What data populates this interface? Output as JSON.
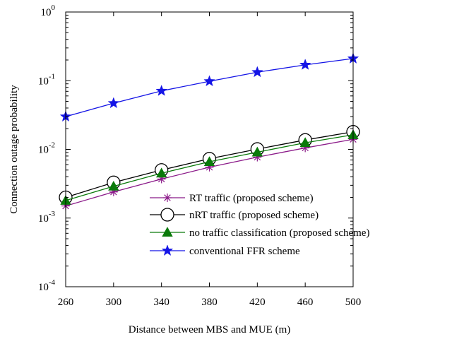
{
  "chart_data": {
    "type": "line",
    "xlabel": "Distance between MBS and MUE (m)",
    "ylabel": "Connection outage probability",
    "xlim": [
      260,
      500
    ],
    "ylim": [
      0.0001,
      1
    ],
    "yscale": "log",
    "x_ticks": [
      "260",
      "300",
      "340",
      "380",
      "420",
      "460",
      "500"
    ],
    "y_ticks": [
      {
        "value": 0.0001,
        "base": "10",
        "exp": "-4"
      },
      {
        "value": 0.001,
        "base": "10",
        "exp": "-3"
      },
      {
        "value": 0.01,
        "base": "10",
        "exp": "-2"
      },
      {
        "value": 0.1,
        "base": "10",
        "exp": "-1"
      },
      {
        "value": 1,
        "base": "10",
        "exp": "0"
      }
    ],
    "grid": false,
    "legend_position": "lower-center",
    "x": [
      260,
      300,
      340,
      380,
      420,
      460,
      500
    ],
    "series": [
      {
        "name": "RT traffic (proposed scheme)",
        "color": "#8B1A89",
        "marker": "asterisk",
        "values": [
          0.0015,
          0.0024,
          0.0037,
          0.0055,
          0.0077,
          0.0105,
          0.014
        ]
      },
      {
        "name": "nRT traffic (proposed scheme)",
        "color": "#000000",
        "marker": "open-circle",
        "values": [
          0.002,
          0.0033,
          0.005,
          0.0073,
          0.0101,
          0.0137,
          0.018
        ]
      },
      {
        "name": "no traffic classification (proposed scheme)",
        "color": "#0A7A0A",
        "marker": "filled-triangle",
        "values": [
          0.0018,
          0.0029,
          0.0045,
          0.0066,
          0.0091,
          0.0125,
          0.0163
        ]
      },
      {
        "name": "conventional FFR scheme",
        "color": "#1414E6",
        "marker": "filled-star",
        "values": [
          0.03,
          0.047,
          0.071,
          0.098,
          0.133,
          0.17,
          0.21
        ]
      }
    ]
  }
}
